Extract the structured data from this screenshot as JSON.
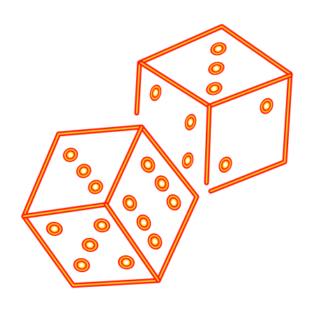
{
  "image": {
    "subject": "neon-dice-icon",
    "style": "neon outline",
    "background": "#ffffff"
  },
  "colors": {
    "outer_stroke": "#ff1a0d",
    "inner_stroke": "#ffd21a"
  },
  "dice": [
    {
      "name": "back-die",
      "faces": [
        {
          "name": "top",
          "pips": 3
        },
        {
          "name": "left",
          "pips": 3
        },
        {
          "name": "right",
          "pips": 2
        }
      ]
    },
    {
      "name": "front-die",
      "faces": [
        {
          "name": "top",
          "pips": 3
        },
        {
          "name": "left",
          "pips": 5
        },
        {
          "name": "right",
          "pips": 6
        }
      ]
    }
  ]
}
